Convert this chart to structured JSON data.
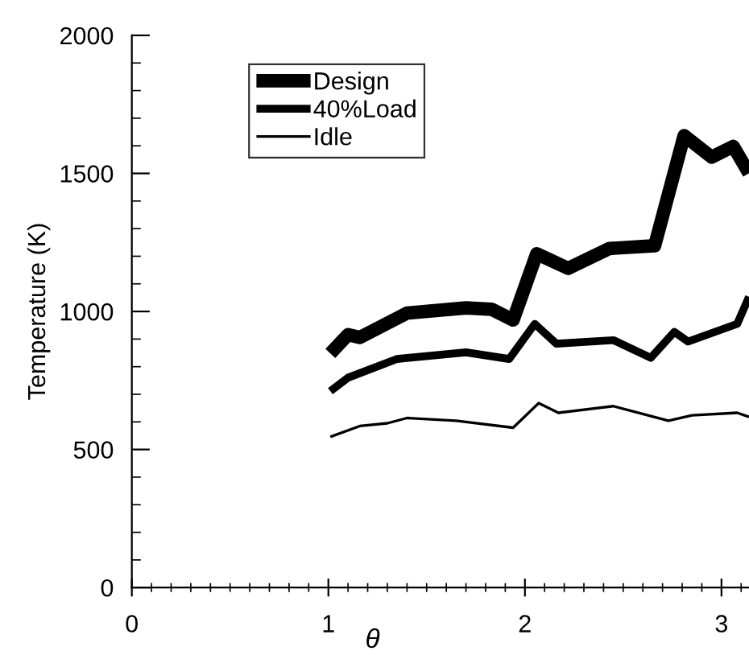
{
  "chart_data": {
    "type": "line",
    "xlabel": "θ",
    "ylabel": "Temperature (K)",
    "xlim": [
      0,
      3.14
    ],
    "ylim": [
      0,
      2000
    ],
    "xticks": [
      0,
      1,
      2,
      3
    ],
    "yticks": [
      0,
      500,
      1000,
      1500,
      2000
    ],
    "grid": false,
    "legend": "top left",
    "marker": "none",
    "line_style": "solid",
    "series": [
      {
        "name": "Design",
        "color": "#000000",
        "x": [
          1.01,
          1.1,
          1.16,
          1.4,
          1.7,
          1.83,
          1.94,
          2.06,
          2.22,
          2.43,
          2.66,
          2.81,
          2.95,
          3.06,
          3.14
        ],
        "values": [
          848,
          916,
          906,
          994,
          1013,
          1008,
          969,
          1209,
          1156,
          1228,
          1238,
          1637,
          1559,
          1598,
          1501
        ]
      },
      {
        "name": "40%Load",
        "color": "#000000",
        "x": [
          1.01,
          1.1,
          1.35,
          1.7,
          1.92,
          2.05,
          2.16,
          2.45,
          2.64,
          2.76,
          2.83,
          3.08,
          3.14
        ],
        "values": [
          711,
          760,
          828,
          852,
          828,
          955,
          883,
          896,
          832,
          926,
          891,
          955,
          1053
        ]
      },
      {
        "name": "Idle",
        "color": "#000000",
        "x": [
          1.01,
          1.16,
          1.3,
          1.4,
          1.65,
          1.94,
          2.07,
          2.17,
          2.45,
          2.73,
          2.85,
          3.08,
          3.14
        ],
        "values": [
          546,
          585,
          595,
          614,
          604,
          579,
          668,
          633,
          657,
          604,
          624,
          633,
          618
        ]
      }
    ]
  }
}
